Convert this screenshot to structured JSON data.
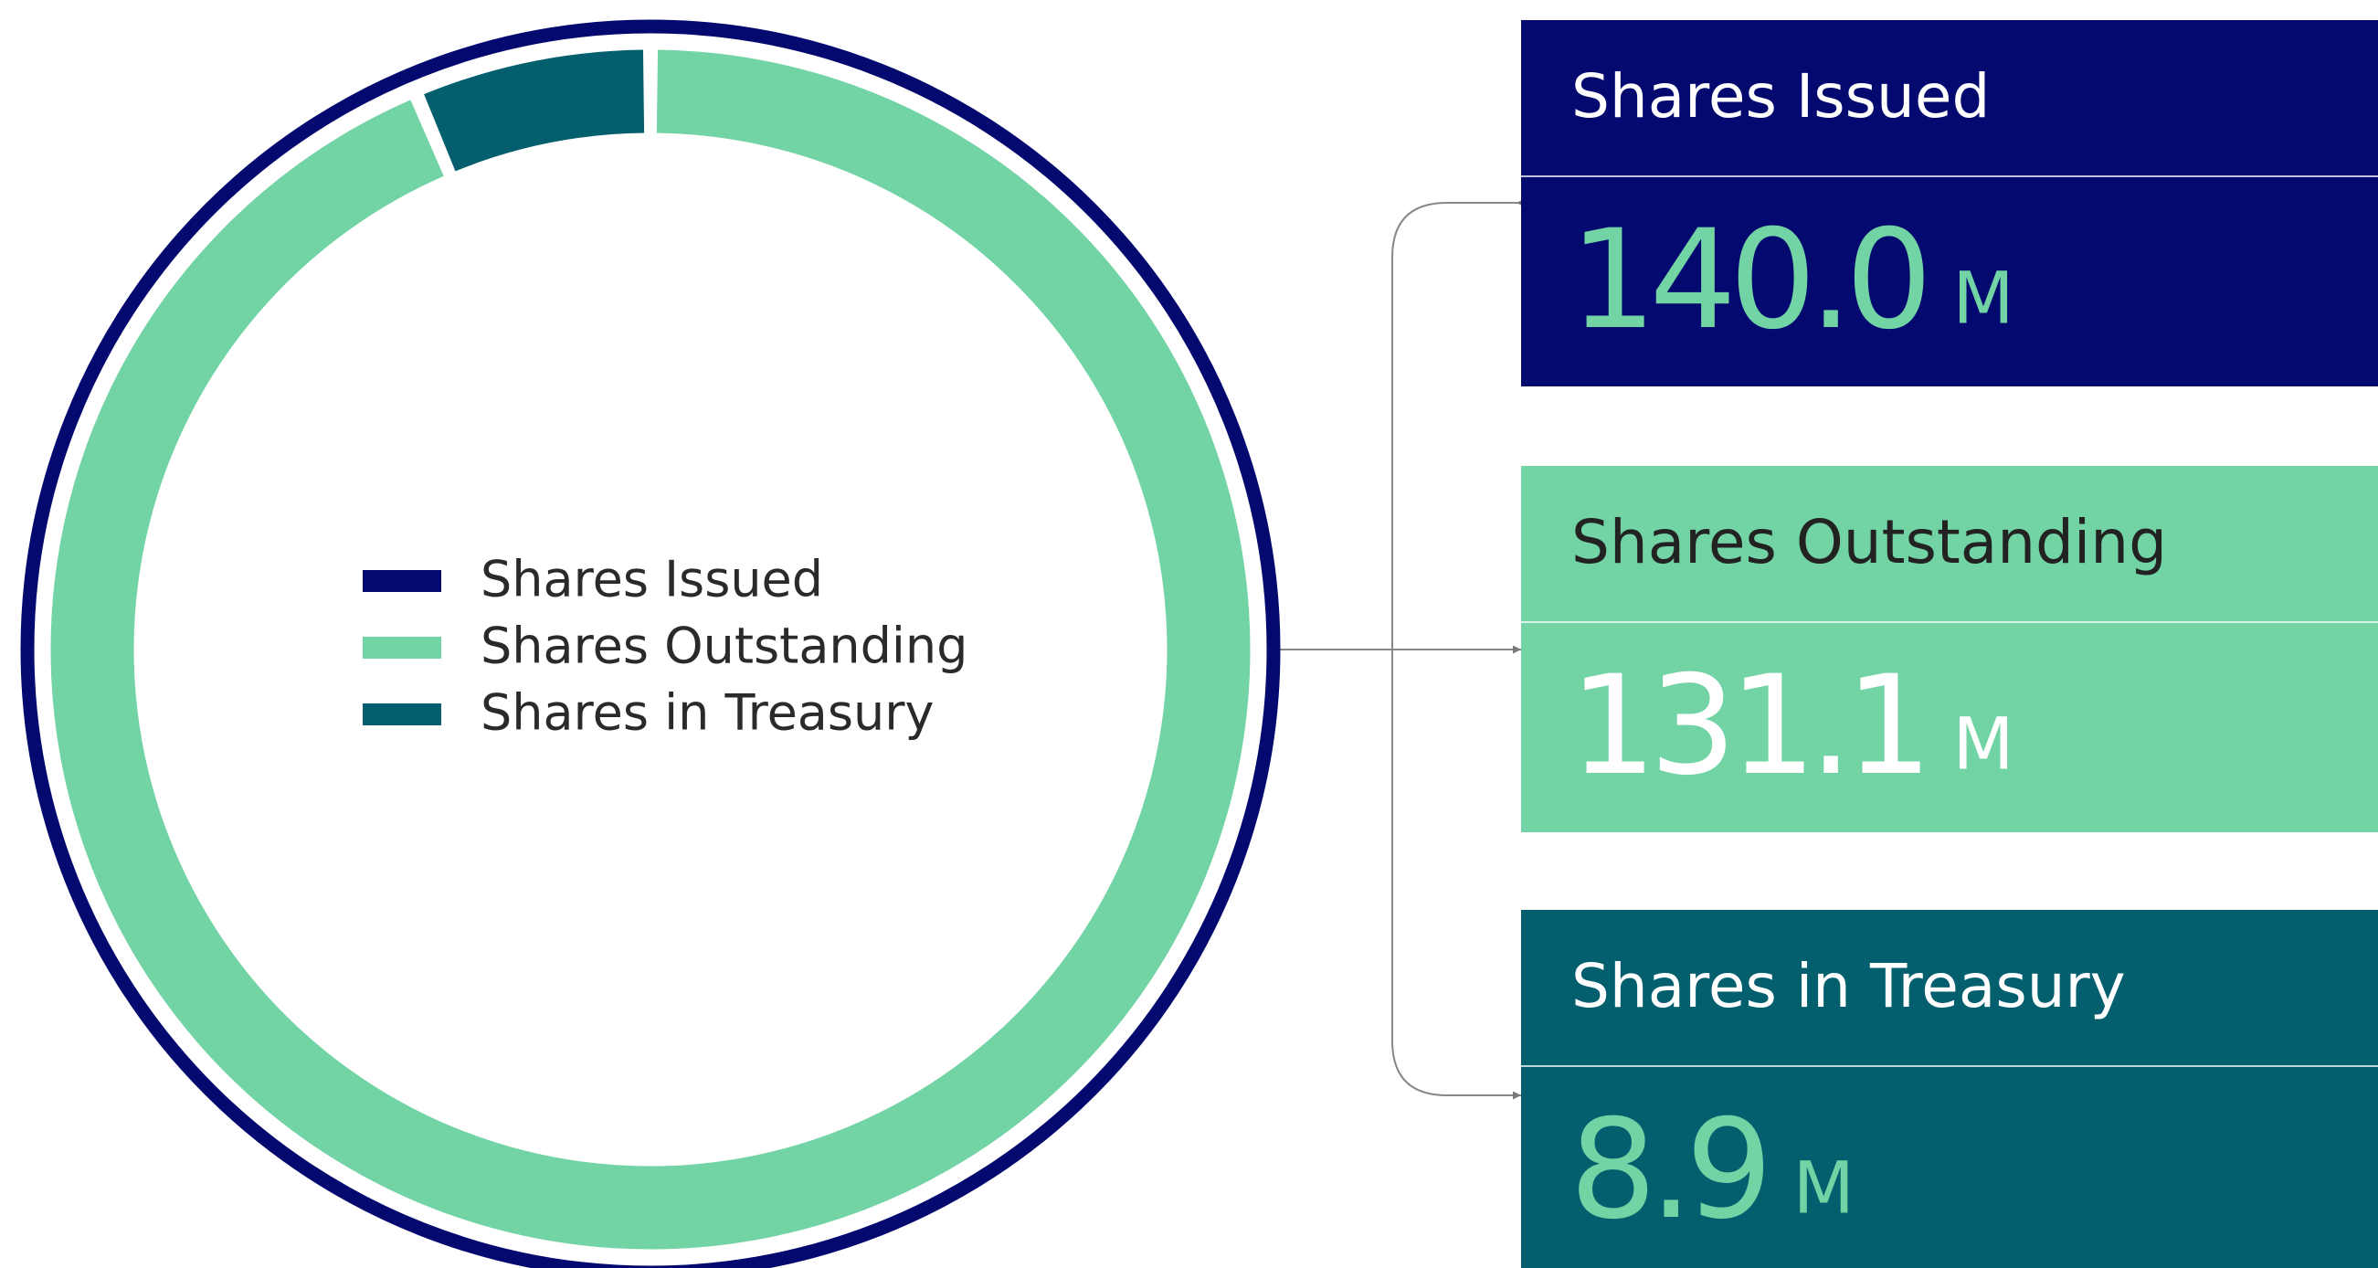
{
  "chart_data": {
    "type": "donut",
    "categories": [
      "Shares Issued",
      "Shares Outstanding",
      "Shares in Treasury"
    ],
    "values": [
      140,
      131.1,
      8.9
    ],
    "value_labels": [
      "140.0",
      "131.1",
      "8.9"
    ],
    "unit": "M",
    "colors": [
      "#03096f",
      "#72d3a5",
      "#035f6e"
    ]
  }
}
